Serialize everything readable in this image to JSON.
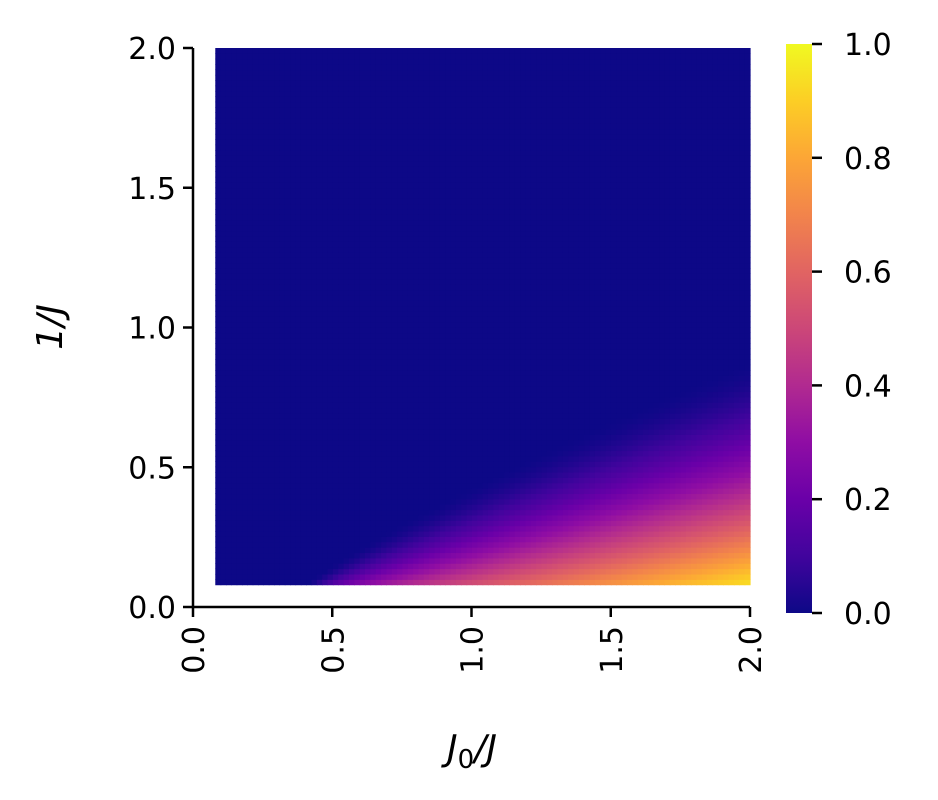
{
  "chart_data": {
    "type": "heatmap",
    "title": "",
    "xlabel": "J0/J",
    "ylabel": "1/J",
    "xlim": [
      0.0,
      2.0
    ],
    "ylim": [
      0.0,
      2.0
    ],
    "x_ticks": [
      "0.0",
      "0.5",
      "1.0",
      "1.5",
      "2.0"
    ],
    "y_ticks": [
      "0.0",
      "0.5",
      "1.0",
      "1.5",
      "2.0"
    ],
    "grid": false,
    "colormap": "plasma",
    "colorbar": {
      "range": [
        0.0,
        1.0
      ],
      "ticks": [
        "0.0",
        "0.2",
        "0.4",
        "0.6",
        "0.8",
        "1.0"
      ],
      "placement": "right"
    },
    "data_extent": {
      "x": [
        0.08,
        2.0
      ],
      "y": [
        0.08,
        2.0
      ]
    },
    "grid_resolution": [
      100,
      100
    ],
    "value_contours": [
      {
        "x": 0.4,
        "y_at_value_0_05": 0.1
      },
      {
        "x": 0.6,
        "y_at_value_0_05": 0.22
      },
      {
        "x": 1.0,
        "y_at_value_0_05": 0.48
      },
      {
        "x": 1.5,
        "y_at_value_0_05": 0.7
      },
      {
        "x": 2.0,
        "y_at_value_0_05": 0.88
      }
    ],
    "max_value": {
      "x": 2.0,
      "y": 0.08,
      "value": 1.0
    },
    "colors": {
      "low": "#0d0887",
      "mid": "#cc4778",
      "high": "#f0f921"
    }
  }
}
